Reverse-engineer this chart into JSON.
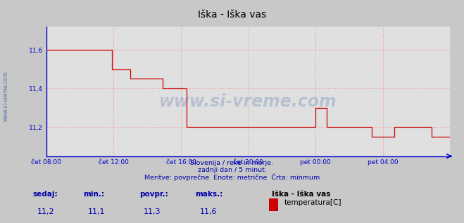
{
  "title": "Iška - Iška vas",
  "bg_color": "#c8c8c8",
  "plot_bg_color": "#e0e0e0",
  "grid_color": "#ff8888",
  "line_color": "#cc0000",
  "axis_color": "#0000cc",
  "text_color": "#0000aa",
  "watermark_color": "#4466aa",
  "ylabel_text": "www.si-vreme.com",
  "xlim_start": 0,
  "xlim_end": 288,
  "ylim": [
    11.05,
    11.72
  ],
  "yticks": [
    11.2,
    11.4,
    11.6
  ],
  "ytick_labels": [
    "11,2",
    "11,4",
    "11,6"
  ],
  "xtick_positions": [
    0,
    48,
    96,
    144,
    192,
    240
  ],
  "xtick_labels": [
    "čet 08:00",
    "čet 12:00",
    "čet 16:00",
    "čet 20:00",
    "pet 00:00",
    "pet 04:00"
  ],
  "subtitle_lines": [
    "Slovenija / reke in morje.",
    "zadnji dan / 5 minut.",
    "Meritve: povprečne  Enote: metrične  Črta: minmum"
  ],
  "footer_labels": [
    "sedaj:",
    "min.:",
    "povpr.:",
    "maks.:"
  ],
  "footer_values": [
    "11,2",
    "11,1",
    "11,3",
    "11,6"
  ],
  "legend_name": "Iška - Iška vas",
  "legend_item": "temperatura[C]",
  "legend_color": "#cc0000",
  "step_data": [
    [
      0,
      11.6
    ],
    [
      47,
      11.6
    ],
    [
      47,
      11.5
    ],
    [
      60,
      11.5
    ],
    [
      60,
      11.45
    ],
    [
      83,
      11.45
    ],
    [
      83,
      11.4
    ],
    [
      100,
      11.4
    ],
    [
      100,
      11.2
    ],
    [
      192,
      11.2
    ],
    [
      192,
      11.3
    ],
    [
      200,
      11.3
    ],
    [
      200,
      11.2
    ],
    [
      232,
      11.2
    ],
    [
      232,
      11.15
    ],
    [
      248,
      11.15
    ],
    [
      248,
      11.2
    ],
    [
      275,
      11.2
    ],
    [
      275,
      11.15
    ],
    [
      288,
      11.15
    ]
  ]
}
